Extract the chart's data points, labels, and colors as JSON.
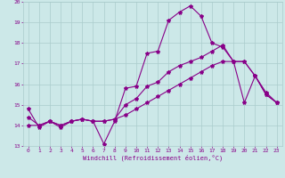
{
  "xlabel": "Windchill (Refroidissement éolien,°C)",
  "background_color": "#cce8e8",
  "line_color": "#880088",
  "grid_color": "#aacccc",
  "xlim": [
    -0.5,
    23.5
  ],
  "ylim": [
    13,
    20
  ],
  "xticks": [
    0,
    1,
    2,
    3,
    4,
    5,
    6,
    7,
    8,
    9,
    10,
    11,
    12,
    13,
    14,
    15,
    16,
    17,
    18,
    19,
    20,
    21,
    22,
    23
  ],
  "yticks": [
    13,
    14,
    15,
    16,
    17,
    18,
    19,
    20
  ],
  "series1_x": [
    0,
    1,
    2,
    3,
    4,
    5,
    6,
    7,
    8,
    9,
    10,
    11,
    12,
    13,
    14,
    15,
    16,
    17,
    18,
    19,
    20,
    21,
    22,
    23
  ],
  "series1_y": [
    14.8,
    13.9,
    14.2,
    13.9,
    14.2,
    14.3,
    14.2,
    13.1,
    14.2,
    15.8,
    15.9,
    17.5,
    17.6,
    19.1,
    19.5,
    19.8,
    19.3,
    18.0,
    17.8,
    17.1,
    15.1,
    16.4,
    15.5,
    15.1
  ],
  "series2_x": [
    0,
    1,
    2,
    3,
    4,
    5,
    6,
    7,
    8,
    9,
    10,
    11,
    12,
    13,
    14,
    15,
    16,
    17,
    18,
    19,
    20,
    21,
    22,
    23
  ],
  "series2_y": [
    14.4,
    14.0,
    14.2,
    14.0,
    14.2,
    14.3,
    14.2,
    14.2,
    14.3,
    15.0,
    15.3,
    15.9,
    16.1,
    16.6,
    16.9,
    17.1,
    17.3,
    17.6,
    17.9,
    17.1,
    17.1,
    16.4,
    15.6,
    15.1
  ],
  "series3_x": [
    0,
    1,
    2,
    3,
    4,
    5,
    6,
    7,
    8,
    9,
    10,
    11,
    12,
    13,
    14,
    15,
    16,
    17,
    18,
    19,
    20,
    21,
    22,
    23
  ],
  "series3_y": [
    14.0,
    14.0,
    14.2,
    14.0,
    14.2,
    14.3,
    14.2,
    14.2,
    14.3,
    14.5,
    14.8,
    15.1,
    15.4,
    15.7,
    16.0,
    16.3,
    16.6,
    16.9,
    17.1,
    17.1,
    17.1,
    16.4,
    15.5,
    15.1
  ]
}
